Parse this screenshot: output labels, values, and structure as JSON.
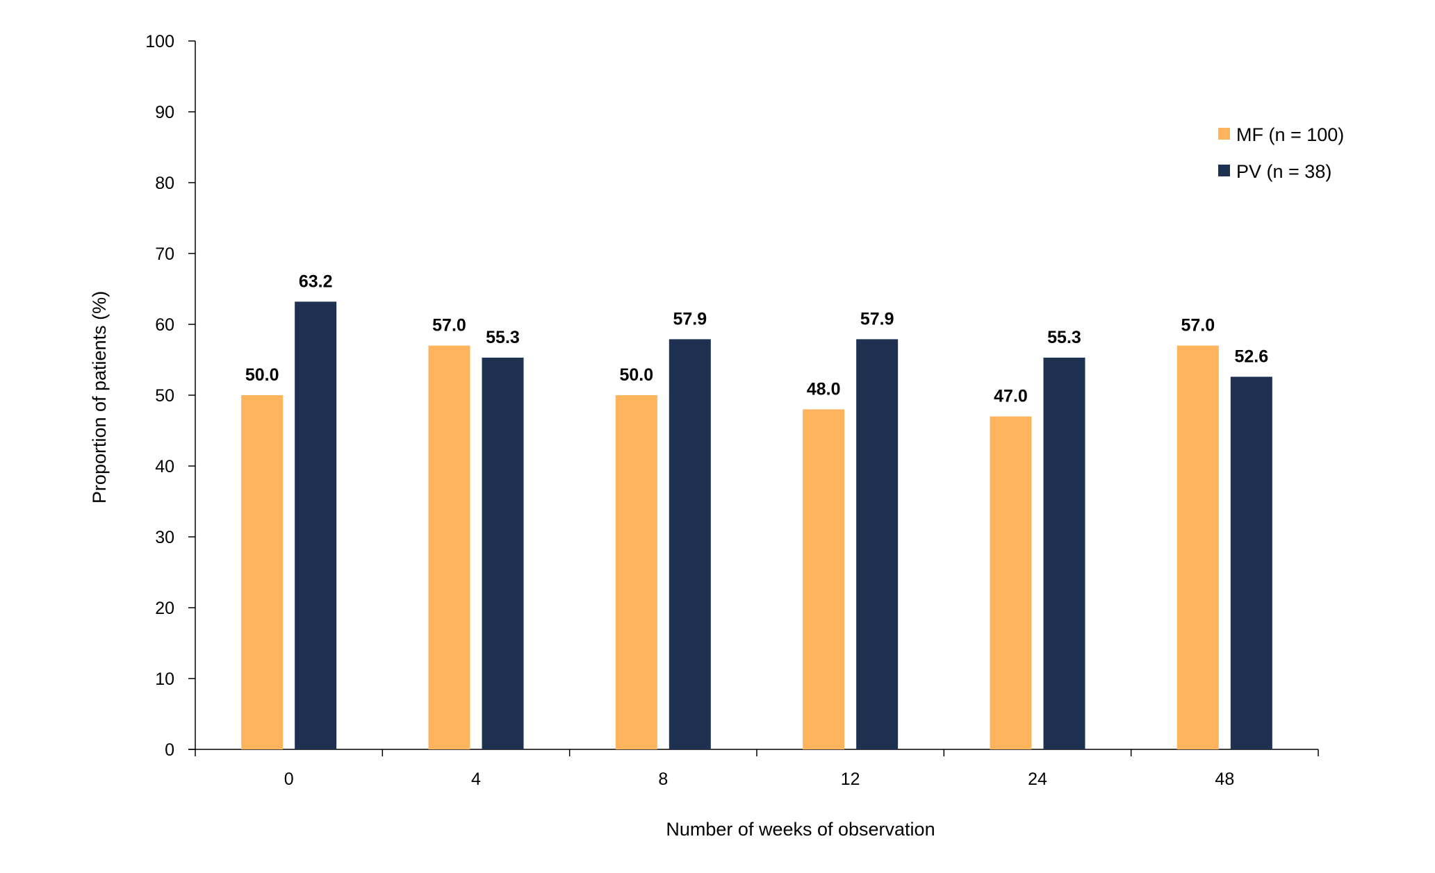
{
  "chart_data": {
    "type": "bar",
    "title": "",
    "xlabel": "Number of weeks of observation",
    "ylabel": "Proportion of patients (%)",
    "categories": [
      "0",
      "4",
      "8",
      "12",
      "24",
      "48"
    ],
    "ylim": [
      0,
      100
    ],
    "yticks": [
      0,
      10,
      20,
      30,
      40,
      50,
      60,
      70,
      80,
      90,
      100
    ],
    "grid": false,
    "legend_position": "top-right",
    "series": [
      {
        "name": "MF (n = 100)",
        "color": "#FDB45C",
        "values": [
          50.0,
          57.0,
          50.0,
          48.0,
          47.0,
          57.0
        ],
        "labels": [
          "50.0",
          "57.0",
          "50.0",
          "48.0",
          "47.0",
          "57.0"
        ]
      },
      {
        "name": "PV (n = 38)",
        "color": "#1F3150",
        "values": [
          63.2,
          55.3,
          57.9,
          57.9,
          55.3,
          52.6
        ],
        "labels": [
          "63.2",
          "55.3",
          "57.9",
          "57.9",
          "55.3",
          "52.6"
        ]
      }
    ]
  }
}
